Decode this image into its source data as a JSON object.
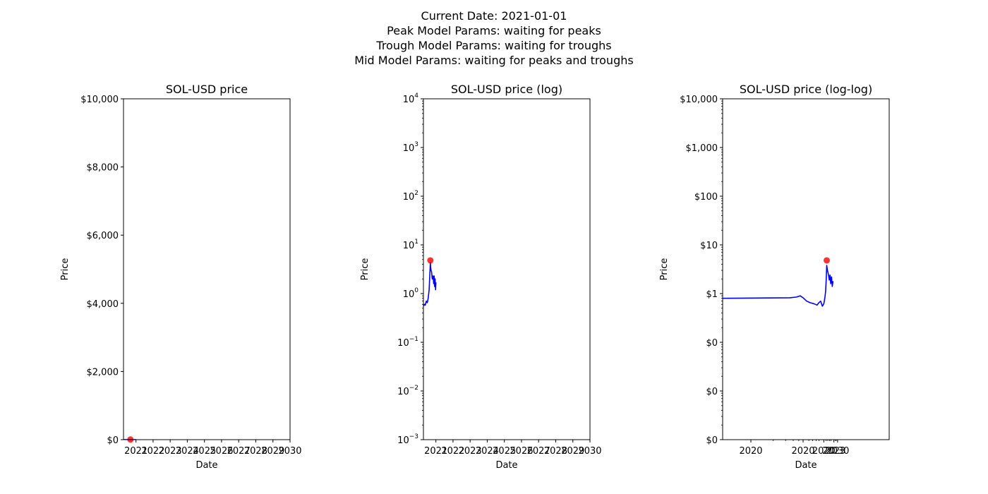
{
  "suptitle": {
    "lines": [
      "Current Date: 2021-01-01",
      "Peak Model Params: waiting for peaks",
      "Trough Model Params: waiting for troughs",
      "Mid Model Params: waiting for peaks and troughs"
    ]
  },
  "colors": {
    "price_line": "#0000ff",
    "peak_marker": "#ff0000",
    "axes": "#000000"
  },
  "chart_data": [
    {
      "type": "line",
      "title": "SOL-USD price",
      "xlabel": "Date",
      "ylabel": "Price",
      "yscale": "linear",
      "xscale": "date",
      "ylim": [
        0,
        10000
      ],
      "xlim": [
        "2020-04-10",
        "2030-01-01"
      ],
      "yticks": [
        0,
        2000,
        4000,
        6000,
        8000,
        10000
      ],
      "ytick_labels": [
        "$0",
        "$2,000",
        "$4,000",
        "$6,000",
        "$8,000",
        "$10,000"
      ],
      "xticks": [
        "2021-01-01",
        "2022-01-01",
        "2023-01-01",
        "2024-01-01",
        "2025-01-01",
        "2026-01-01",
        "2027-01-01",
        "2028-01-01",
        "2029-01-01",
        "2030-01-01"
      ],
      "xtick_labels": [
        "2021",
        "2022",
        "2023",
        "2024",
        "2025",
        "2026",
        "2027",
        "2028",
        "2029",
        "2030"
      ],
      "series": [
        {
          "kind": "line",
          "x": [
            "2020-04-10",
            "2020-05-01",
            "2020-05-20",
            "2020-06-10",
            "2020-07-01",
            "2020-07-20",
            "2020-08-10",
            "2020-08-20",
            "2020-08-30",
            "2020-09-05",
            "2020-09-10",
            "2020-09-20",
            "2020-10-01",
            "2020-10-15",
            "2020-11-01",
            "2020-11-15",
            "2020-11-25",
            "2020-12-05",
            "2020-12-15",
            "2020-12-25",
            "2021-01-01"
          ],
          "values": [
            0.8,
            0.85,
            0.9,
            0.75,
            0.7,
            0.65,
            0.9,
            1.5,
            3.0,
            4.5,
            3.6,
            3.2,
            3.0,
            2.2,
            2.5,
            1.8,
            2.2,
            1.4,
            2.0,
            1.3,
            1.8
          ]
        },
        {
          "kind": "peak_marker",
          "x": [
            "2020-09-05"
          ],
          "values": [
            4.8
          ]
        }
      ]
    },
    {
      "type": "line",
      "title": "SOL-USD price (log)",
      "xlabel": "Date",
      "ylabel": "Price",
      "yscale": "log",
      "xscale": "date",
      "ylim": [
        0.001,
        10000
      ],
      "xlim": [
        "2020-04-10",
        "2030-01-01"
      ],
      "yticks": [
        0.001,
        0.01,
        0.1,
        1,
        10,
        100,
        1000,
        10000
      ],
      "ytick_labels": [
        [
          "10",
          "−3"
        ],
        [
          "10",
          "−2"
        ],
        [
          "10",
          "−1"
        ],
        [
          "10",
          "0"
        ],
        [
          "10",
          "1"
        ],
        [
          "10",
          "2"
        ],
        [
          "10",
          "3"
        ],
        [
          "10",
          "4"
        ]
      ],
      "xticks": [
        "2021-01-01",
        "2022-01-01",
        "2023-01-01",
        "2024-01-01",
        "2025-01-01",
        "2026-01-01",
        "2027-01-01",
        "2028-01-01",
        "2029-01-01",
        "2030-01-01"
      ],
      "xtick_labels": [
        "2021",
        "2022",
        "2023",
        "2024",
        "2025",
        "2026",
        "2027",
        "2028",
        "2029",
        "2030"
      ],
      "series": [
        {
          "kind": "line",
          "x": [
            "2020-04-10",
            "2020-05-01",
            "2020-05-20",
            "2020-06-10",
            "2020-07-01",
            "2020-07-20",
            "2020-08-10",
            "2020-08-20",
            "2020-08-30",
            "2020-09-05",
            "2020-09-10",
            "2020-09-20",
            "2020-10-01",
            "2020-10-15",
            "2020-11-01",
            "2020-11-15",
            "2020-11-25",
            "2020-12-05",
            "2020-12-15",
            "2020-12-25",
            "2021-01-01"
          ],
          "values": [
            0.55,
            0.6,
            0.58,
            0.7,
            0.65,
            0.8,
            1.2,
            2.0,
            3.2,
            4.4,
            3.5,
            3.0,
            2.8,
            2.0,
            2.3,
            1.6,
            2.3,
            1.4,
            2.0,
            1.2,
            1.7
          ]
        },
        {
          "kind": "peak_marker",
          "x": [
            "2020-09-05"
          ],
          "values": [
            4.8
          ]
        }
      ]
    },
    {
      "type": "line",
      "title": "SOL-USD price (log-log)",
      "xlabel": "Date",
      "ylabel": "Price",
      "yscale": "log",
      "xscale": "log",
      "ylim": [
        0.001,
        10000
      ],
      "xlim": [
        "2020-03-25",
        "2030-01-01"
      ],
      "yticks": [
        0.001,
        0.01,
        0.1,
        1,
        10,
        100,
        1000,
        10000
      ],
      "ytick_labels": [
        "$0",
        "$0",
        "$0",
        "$1",
        "$10",
        "$100",
        "$1,000",
        "$10,000"
      ],
      "xticks": [
        "2020-03-28",
        "2020-05-15",
        "2020-08-15",
        "2020-11-15",
        "2021-01-01"
      ],
      "xtick_labels": [
        "2020",
        "2020",
        "2020",
        "2023",
        "2030"
      ],
      "series": [
        {
          "kind": "line",
          "x": [
            "2020-03-25",
            "2020-04-20",
            "2020-05-01",
            "2020-05-08",
            "2020-05-15",
            "2020-05-25",
            "2020-06-05",
            "2020-06-20",
            "2020-07-05",
            "2020-07-15",
            "2020-07-25",
            "2020-08-05",
            "2020-08-15",
            "2020-08-22",
            "2020-08-28",
            "2020-09-02",
            "2020-09-06",
            "2020-09-12",
            "2020-09-20",
            "2020-09-28",
            "2020-10-05",
            "2020-10-12",
            "2020-10-20",
            "2020-10-28",
            "2020-11-05"
          ],
          "values": [
            0.8,
            0.82,
            0.85,
            0.9,
            0.82,
            0.7,
            0.65,
            0.62,
            0.58,
            0.65,
            0.7,
            0.55,
            0.62,
            0.8,
            1.1,
            2.0,
            3.8,
            3.0,
            2.5,
            1.9,
            2.4,
            1.6,
            2.2,
            1.4,
            1.8
          ]
        },
        {
          "kind": "peak_marker",
          "x": [
            "2020-09-06"
          ],
          "values": [
            4.8
          ]
        }
      ]
    }
  ]
}
